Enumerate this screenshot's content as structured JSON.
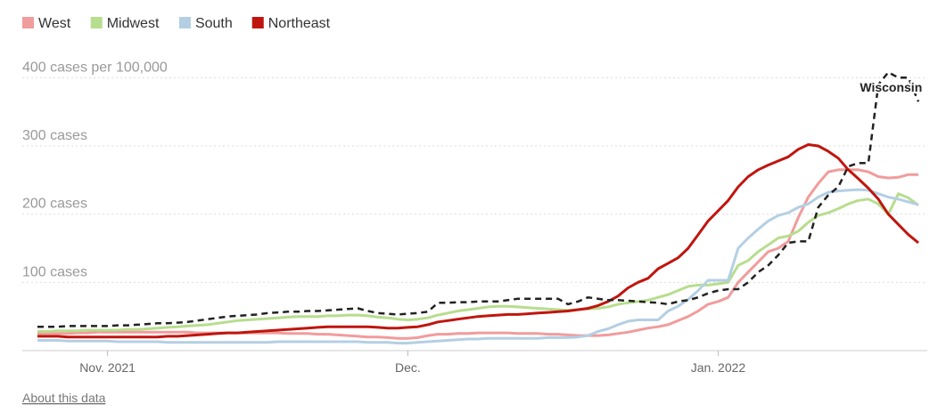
{
  "chart_data": {
    "type": "line",
    "categories": [
      null,
      null,
      null,
      null,
      null,
      null,
      null,
      "Nov. 2021",
      null,
      null,
      null,
      null,
      null,
      null,
      null,
      null,
      null,
      null,
      null,
      null,
      null,
      null,
      null,
      null,
      null,
      null,
      null,
      null,
      null,
      null,
      null,
      null,
      null,
      null,
      null,
      null,
      null,
      "Dec.",
      null,
      null,
      null,
      null,
      null,
      null,
      null,
      null,
      null,
      null,
      null,
      null,
      null,
      null,
      null,
      null,
      null,
      null,
      null,
      null,
      null,
      null,
      null,
      null,
      null,
      null,
      null,
      null,
      null,
      null,
      "Jan. 2022",
      null,
      null,
      null,
      null,
      null,
      null,
      null,
      null,
      null,
      null,
      null,
      null,
      null,
      null,
      null,
      null,
      null,
      null,
      null,
      null
    ],
    "series": [
      {
        "name": "West",
        "color": "#f19c9c",
        "values": [
          25,
          25,
          25,
          25,
          26,
          26,
          27,
          27,
          27,
          27,
          27,
          27,
          27,
          27,
          27,
          27,
          26,
          26,
          26,
          26,
          26,
          26,
          26,
          26,
          26,
          25,
          25,
          25,
          24,
          24,
          23,
          22,
          21,
          20,
          20,
          19,
          18,
          18,
          19,
          22,
          24,
          24,
          25,
          25,
          26,
          26,
          26,
          26,
          25,
          25,
          25,
          24,
          24,
          23,
          22,
          22,
          22,
          23,
          25,
          27,
          30,
          33,
          35,
          38,
          44,
          50,
          58,
          68,
          72,
          78,
          100,
          115,
          130,
          145,
          150,
          160,
          195,
          225,
          245,
          262,
          265,
          265,
          265,
          262,
          255,
          253,
          254,
          258,
          258
        ]
      },
      {
        "name": "Midwest",
        "color": "#b7dd8e",
        "values": [
          28,
          28,
          29,
          29,
          29,
          30,
          30,
          30,
          30,
          31,
          31,
          32,
          33,
          34,
          35,
          36,
          37,
          38,
          40,
          42,
          44,
          45,
          46,
          47,
          48,
          49,
          50,
          50,
          50,
          51,
          51,
          52,
          52,
          51,
          49,
          48,
          46,
          45,
          46,
          48,
          52,
          55,
          58,
          60,
          62,
          64,
          65,
          65,
          64,
          63,
          62,
          61,
          60,
          59,
          60,
          61,
          62,
          64,
          68,
          70,
          72,
          74,
          78,
          82,
          88,
          94,
          96,
          96,
          98,
          100,
          125,
          132,
          145,
          155,
          165,
          168,
          175,
          188,
          198,
          202,
          208,
          215,
          220,
          222,
          215,
          200,
          230,
          224,
          213
        ]
      },
      {
        "name": "South",
        "color": "#b4cfe3",
        "values": [
          15,
          15,
          15,
          14,
          14,
          14,
          14,
          14,
          13,
          13,
          13,
          13,
          13,
          12,
          12,
          12,
          12,
          12,
          12,
          12,
          12,
          12,
          12,
          12,
          13,
          13,
          13,
          13,
          13,
          13,
          13,
          13,
          13,
          12,
          12,
          12,
          11,
          11,
          12,
          13,
          14,
          15,
          16,
          17,
          17,
          18,
          18,
          18,
          18,
          18,
          18,
          19,
          19,
          19,
          20,
          22,
          28,
          32,
          38,
          43,
          45,
          45,
          45,
          58,
          65,
          75,
          88,
          103,
          103,
          103,
          150,
          165,
          178,
          190,
          198,
          202,
          210,
          215,
          225,
          232,
          234,
          235,
          236,
          235,
          230,
          225,
          222,
          218,
          214
        ]
      },
      {
        "name": "Northeast",
        "color": "#c0150f",
        "values": [
          21,
          21,
          21,
          20,
          20,
          20,
          20,
          20,
          20,
          20,
          20,
          20,
          20,
          21,
          21,
          22,
          23,
          24,
          25,
          26,
          26,
          27,
          28,
          29,
          30,
          31,
          32,
          33,
          34,
          35,
          35,
          35,
          35,
          35,
          34,
          33,
          33,
          34,
          35,
          38,
          42,
          44,
          46,
          48,
          50,
          51,
          52,
          53,
          53,
          54,
          55,
          56,
          57,
          58,
          60,
          62,
          66,
          72,
          80,
          92,
          100,
          106,
          120,
          128,
          136,
          150,
          170,
          190,
          205,
          220,
          240,
          255,
          265,
          272,
          278,
          284,
          295,
          302,
          300,
          292,
          282,
          265,
          252,
          238,
          222,
          200,
          185,
          170,
          158
        ]
      },
      {
        "name": "Wisconsin",
        "color": "#222222",
        "dash": true,
        "values": [
          35,
          35,
          35,
          36,
          36,
          36,
          36,
          36,
          37,
          37,
          38,
          39,
          40,
          40,
          41,
          42,
          44,
          46,
          48,
          50,
          51,
          52,
          53,
          55,
          56,
          57,
          57,
          58,
          58,
          59,
          60,
          61,
          62,
          58,
          55,
          54,
          53,
          54,
          55,
          57,
          70,
          70,
          71,
          71,
          72,
          72,
          72,
          74,
          76,
          76,
          76,
          76,
          76,
          68,
          72,
          78,
          76,
          74,
          74,
          73,
          72,
          71,
          70,
          68,
          72,
          74,
          78,
          84,
          88,
          90,
          90,
          100,
          115,
          125,
          140,
          158,
          160,
          160,
          210,
          228,
          240,
          270,
          275,
          275,
          390,
          408,
          400,
          400,
          365
        ]
      }
    ],
    "ylim": [
      0,
      420
    ],
    "yticks": [
      {
        "value": 100,
        "label": "100 cases"
      },
      {
        "value": 200,
        "label": "200 cases"
      },
      {
        "value": 300,
        "label": "300 cases"
      },
      {
        "value": 400,
        "label": "400 cases per 100,000"
      }
    ],
    "grid": true,
    "footer_link": "About this data"
  }
}
